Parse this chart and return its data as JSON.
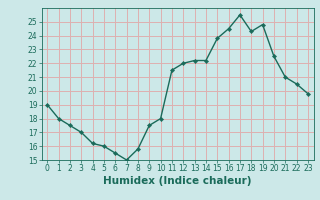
{
  "x": [
    0,
    1,
    2,
    3,
    4,
    5,
    6,
    7,
    8,
    9,
    10,
    11,
    12,
    13,
    14,
    15,
    16,
    17,
    18,
    19,
    20,
    21,
    22,
    23
  ],
  "y": [
    19.0,
    18.0,
    17.5,
    17.0,
    16.2,
    16.0,
    15.5,
    15.0,
    15.8,
    17.5,
    18.0,
    21.5,
    22.0,
    22.2,
    22.2,
    23.8,
    24.5,
    25.5,
    24.3,
    24.8,
    22.5,
    21.0,
    20.5,
    19.8
  ],
  "line_color": "#1a6b5a",
  "marker_color": "#1a6b5a",
  "bg_color": "#cce8e8",
  "grid_color": "#deb0b0",
  "xlabel": "Humidex (Indice chaleur)",
  "xlim": [
    -0.5,
    23.5
  ],
  "ylim": [
    15,
    26
  ],
  "yticks": [
    15,
    16,
    17,
    18,
    19,
    20,
    21,
    22,
    23,
    24,
    25
  ],
  "xticks": [
    0,
    1,
    2,
    3,
    4,
    5,
    6,
    7,
    8,
    9,
    10,
    11,
    12,
    13,
    14,
    15,
    16,
    17,
    18,
    19,
    20,
    21,
    22,
    23
  ],
  "tick_label_fontsize": 5.5,
  "xlabel_fontsize": 7.5,
  "line_width": 1.0,
  "marker_size": 2.2
}
